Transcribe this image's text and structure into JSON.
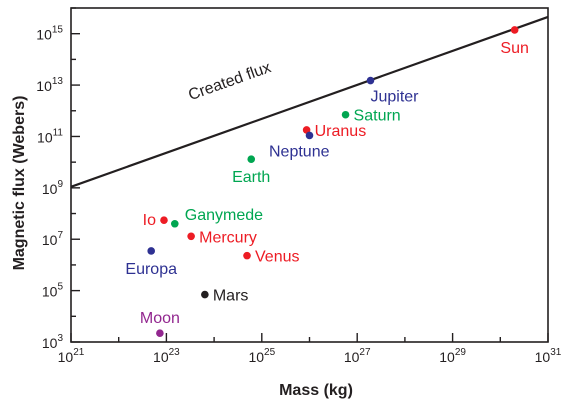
{
  "chart_data": {
    "type": "scatter",
    "xlabel": "Mass (kg)",
    "ylabel": "Magnetic flux (Webers)",
    "x_scale": "log",
    "y_scale": "log",
    "xlim": [
      1e+21,
      1e+31
    ],
    "ylim": [
      1000.0,
      1e+16
    ],
    "grid": false,
    "x_ticks": [
      {
        "base": "10",
        "exp": "21",
        "value": 1e+21
      },
      {
        "base": "10",
        "exp": "23",
        "value": 1e+23
      },
      {
        "base": "10",
        "exp": "25",
        "value": 1e+25
      },
      {
        "base": "10",
        "exp": "27",
        "value": 1e+27
      },
      {
        "base": "10",
        "exp": "29",
        "value": 1e+29
      },
      {
        "base": "10",
        "exp": "31",
        "value": 1e+31
      }
    ],
    "y_ticks": [
      {
        "base": "10",
        "exp": "3",
        "value": 1000.0
      },
      {
        "base": "10",
        "exp": "5",
        "value": 100000.0
      },
      {
        "base": "10",
        "exp": "7",
        "value": 10000000.0
      },
      {
        "base": "10",
        "exp": "9",
        "value": 1000000000.0
      },
      {
        "base": "10",
        "exp": "11",
        "value": 100000000000.0
      },
      {
        "base": "10",
        "exp": "13",
        "value": 10000000000000.0
      },
      {
        "base": "10",
        "exp": "15",
        "value": 1000000000000000.0
      }
    ],
    "line": {
      "label": "Created flux",
      "color": "#231f20",
      "points": [
        {
          "x": 1e+21,
          "y": 1100000000.0
        },
        {
          "x": 1e+31,
          "y": 4500000000000000.0
        }
      ]
    },
    "points": [
      {
        "label": "Sun",
        "x": 2e+30,
        "y": 1400000000000000.0,
        "color": "#ed1c24",
        "label_pos": "below"
      },
      {
        "label": "Jupiter",
        "x": 1.9e+27,
        "y": 15000000000000.0,
        "color": "#2e3192",
        "label_pos": "below-right"
      },
      {
        "label": "Saturn",
        "x": 5.7e+26,
        "y": 700000000000.0,
        "color": "#00a651",
        "label_pos": "right"
      },
      {
        "label": "Uranus",
        "x": 8.7e+25,
        "y": 180000000000.0,
        "color": "#ed1c24",
        "label_pos": "right"
      },
      {
        "label": "Neptune",
        "x": 1e+26,
        "y": 110000000000.0,
        "color": "#2e3192",
        "label_pos": "below-left"
      },
      {
        "label": "Earth",
        "x": 6e+24,
        "y": 13000000000.0,
        "color": "#00a651",
        "label_pos": "below"
      },
      {
        "label": "Io",
        "x": 8.9e+22,
        "y": 55000000.0,
        "color": "#ed1c24",
        "label_pos": "left"
      },
      {
        "label": "Ganymede",
        "x": 1.5e+23,
        "y": 40000000.0,
        "color": "#00a651",
        "label_pos": "above-right"
      },
      {
        "label": "Mercury",
        "x": 3.3e+23,
        "y": 13000000.0,
        "color": "#ed1c24",
        "label_pos": "right"
      },
      {
        "label": "Europa",
        "x": 4.8e+22,
        "y": 3500000.0,
        "color": "#2e3192",
        "label_pos": "below"
      },
      {
        "label": "Venus",
        "x": 4.9e+24,
        "y": 2300000.0,
        "color": "#ed1c24",
        "label_pos": "right"
      },
      {
        "label": "Mars",
        "x": 6.4e+23,
        "y": 70000.0,
        "color": "#231f20",
        "label_pos": "right"
      },
      {
        "label": "Moon",
        "x": 7.3e+22,
        "y": 2200.0,
        "color": "#92278f",
        "label_pos": "above"
      }
    ]
  }
}
